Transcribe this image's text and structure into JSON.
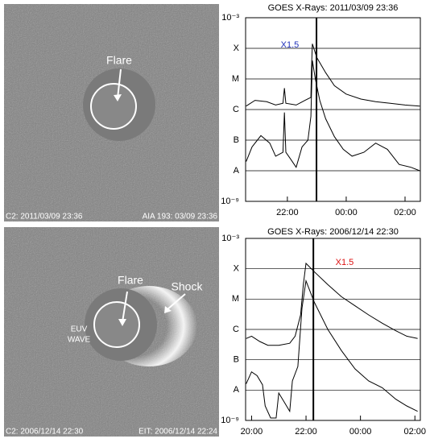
{
  "panels": [
    {
      "labels": [
        "Flare"
      ],
      "caption_left": "C2: 2011/03/09 23:36",
      "caption_right": "AIA 193: 03/09 23:36"
    },
    {
      "labels": [
        "Flare",
        "Shock",
        "EUV",
        "WAVE"
      ],
      "caption_left": "C2: 2006/12/14 22:30",
      "caption_right": "EIT: 2006/12/14 22:24"
    }
  ],
  "chart_data": [
    {
      "type": "line",
      "title": "GOES X-Rays: 2011/03/09 23:36",
      "log_y": true,
      "grid": true,
      "xlim": [
        20.58,
        26.52
      ],
      "xticks": [
        {
          "value": 22,
          "label": "22:00"
        },
        {
          "value": 24,
          "label": "00:00"
        },
        {
          "value": 26,
          "label": "02:00"
        }
      ],
      "ylim": [
        1e-09,
        0.001
      ],
      "yticks": [
        {
          "value": 1e-09,
          "label": "10⁻⁹"
        },
        {
          "value": 1e-08,
          "label": "A"
        },
        {
          "value": 1e-07,
          "label": "B"
        },
        {
          "value": 1e-06,
          "label": "C"
        },
        {
          "value": 1e-05,
          "label": "M"
        },
        {
          "value": 0.0001,
          "label": "X"
        },
        {
          "value": 0.001,
          "label": "10⁻³"
        }
      ],
      "marker_x": 22.99,
      "annotation": {
        "text": "X1.5",
        "color": "#2233bb"
      },
      "series": [
        {
          "color": "#000000",
          "x": [
            20.6,
            20.9,
            21.3,
            21.6,
            21.85,
            21.9,
            21.95,
            22.3,
            22.6,
            22.8,
            22.82,
            22.85,
            23.0,
            23.3,
            23.6,
            24.0,
            24.5,
            25.0,
            25.5,
            26.0,
            26.5
          ],
          "values": [
            1.3e-06,
            2e-06,
            1.8e-06,
            1.4e-06,
            1.6e-06,
            5e-06,
            1.6e-06,
            1.4e-06,
            2e-06,
            2.5e-06,
            2e-05,
            0.00014,
            5e-05,
            1.6e-05,
            6e-06,
            3.2e-06,
            2.2e-06,
            1.8e-06,
            1.6e-06,
            1.4e-06,
            1.3e-06
          ]
        },
        {
          "color": "#000000",
          "x": [
            20.6,
            20.8,
            21.1,
            21.4,
            21.6,
            21.85,
            21.9,
            21.95,
            22.1,
            22.3,
            22.5,
            22.7,
            22.8,
            22.85,
            22.95,
            23.1,
            23.3,
            23.6,
            23.9,
            24.2,
            24.6,
            25.0,
            25.4,
            25.8,
            26.2,
            26.5
          ],
          "values": [
            2e-08,
            6e-08,
            1.4e-07,
            8e-08,
            3e-08,
            4e-08,
            8e-07,
            4e-08,
            2.5e-08,
            1.3e-08,
            6e-08,
            1e-07,
            6e-07,
            4e-05,
            1e-05,
            2e-06,
            5e-07,
            1.3e-07,
            5e-08,
            3e-08,
            4e-08,
            8e-08,
            5e-08,
            1.6e-08,
            1.3e-08,
            1e-08
          ]
        }
      ]
    },
    {
      "type": "line",
      "title": "GOES X-Rays: 2006/12/14 22:30",
      "log_y": true,
      "grid": true,
      "xlim": [
        19.78,
        26.2
      ],
      "xticks": [
        {
          "value": 20,
          "label": "20:00"
        },
        {
          "value": 22,
          "label": "22:00"
        },
        {
          "value": 24,
          "label": "00:00"
        },
        {
          "value": 26,
          "label": "02:00"
        }
      ],
      "ylim": [
        1e-09,
        0.001
      ],
      "yticks": [
        {
          "value": 1e-09,
          "label": "10⁻⁹"
        },
        {
          "value": 1e-08,
          "label": "A"
        },
        {
          "value": 1e-07,
          "label": "B"
        },
        {
          "value": 1e-06,
          "label": "C"
        },
        {
          "value": 1e-05,
          "label": "M"
        },
        {
          "value": 0.0001,
          "label": "X"
        },
        {
          "value": 0.001,
          "label": "10⁻³"
        }
      ],
      "marker_x": 22.27,
      "annotation": {
        "text": "X1.5",
        "color": "#dd1111"
      },
      "series": [
        {
          "color": "#000000",
          "x": [
            19.8,
            20.0,
            20.3,
            20.6,
            21.0,
            21.4,
            21.6,
            21.8,
            21.9,
            22.0,
            22.3,
            22.8,
            23.3,
            23.8,
            24.3,
            24.8,
            25.3,
            25.7,
            26.1
          ],
          "values": [
            5e-07,
            6e-07,
            4e-07,
            3e-07,
            3e-07,
            3.5e-07,
            6e-07,
            3e-06,
            3e-05,
            0.00015,
            8e-05,
            3e-05,
            1.2e-05,
            6e-06,
            3e-06,
            1.6e-06,
            9e-07,
            6e-07,
            5e-07
          ]
        },
        {
          "color": "#000000",
          "x": [
            19.8,
            20.0,
            20.2,
            20.4,
            20.5,
            20.7,
            20.9,
            21.0,
            21.2,
            21.4,
            21.5,
            21.7,
            21.85,
            22.0,
            22.3,
            22.8,
            23.3,
            23.8,
            24.3,
            24.8,
            25.3,
            25.7,
            26.1
          ],
          "values": [
            1.6e-08,
            4e-08,
            3e-08,
            1.5e-08,
            3e-09,
            1.2e-09,
            1.2e-09,
            8e-09,
            4e-09,
            2e-09,
            2e-08,
            6e-08,
            5e-06,
            4e-05,
            8e-06,
            1e-06,
            2e-07,
            5e-08,
            2e-08,
            1.2e-08,
            5e-09,
            3e-09,
            2e-09
          ]
        }
      ]
    }
  ]
}
